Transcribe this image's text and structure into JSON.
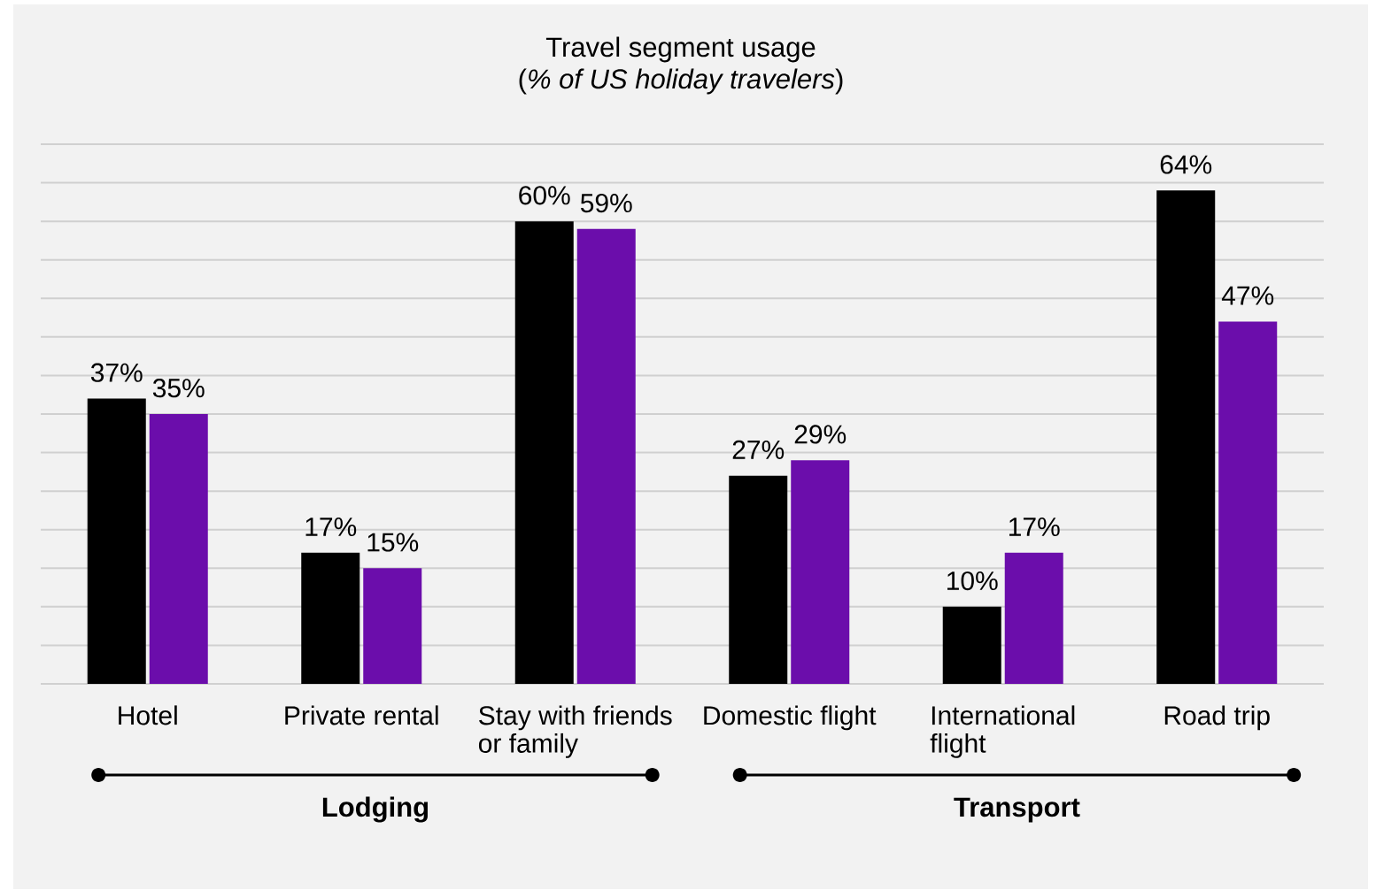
{
  "chart_data": {
    "type": "bar",
    "title": "Travel segment usage",
    "subtitle": "(*% of US holiday travelers*)",
    "categories": [
      "Hotel",
      "Private rental",
      "Stay with friends or family",
      "Domestic flight",
      "International flight",
      "Road trip"
    ],
    "series": [
      {
        "color": "#000000",
        "values": [
          37,
          17,
          60,
          27,
          10,
          64
        ],
        "value_labels": [
          "37%",
          "17%",
          "60%",
          "27%",
          "10%",
          "64%"
        ]
      },
      {
        "color": "#6b0dab",
        "values": [
          35,
          15,
          59,
          29,
          17,
          47
        ],
        "value_labels": [
          "35%",
          "15%",
          "59%",
          "29%",
          "17%",
          "47%"
        ]
      }
    ],
    "ylim": [
      0,
      70
    ],
    "yticks": [
      {
        "value": 0,
        "label": null
      },
      {
        "value": 5,
        "label": null
      },
      {
        "value": 10,
        "label": null
      },
      {
        "value": 15,
        "label": null
      },
      {
        "value": 20,
        "label": null
      },
      {
        "value": 25,
        "label": null
      },
      {
        "value": 30,
        "label": null
      },
      {
        "value": 35,
        "label": null
      },
      {
        "value": 40,
        "label": null
      },
      {
        "value": 45,
        "label": null
      },
      {
        "value": 50,
        "label": null
      },
      {
        "value": 55,
        "label": null
      },
      {
        "value": 60,
        "label": null
      },
      {
        "value": 65,
        "label": null
      },
      {
        "value": 70,
        "label": null
      }
    ],
    "grid": "y",
    "tick_labels": "x",
    "annotations": [
      "Lodging",
      "Transport"
    ]
  }
}
